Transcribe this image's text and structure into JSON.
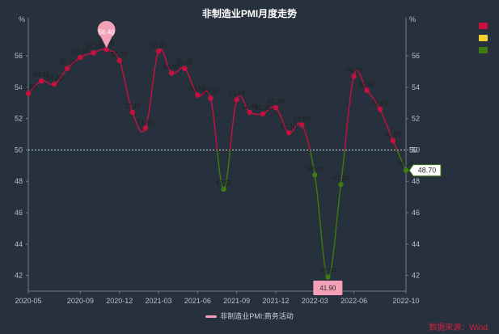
{
  "colors": {
    "up": "#c8103e",
    "down": "#3f7a0c",
    "neutral": "#f2d22e",
    "line_legend": "#f4a0b8",
    "mark_label": "#f4a0b8"
  },
  "legend_dots": [
    "#c8103e",
    "#f2d22e",
    "#3f7a0c"
  ],
  "source_text": "数据来源：Wind",
  "chart_data": {
    "type": "line",
    "title": "非制造业PMI月度走势",
    "y_unit_left": "%",
    "y_unit_right": "%",
    "ylim": [
      41,
      57.5
    ],
    "yticks": [
      42,
      44,
      46,
      48,
      50,
      52,
      54,
      56
    ],
    "x_tick_labels": [
      "2020-05",
      "2020-09",
      "2020-12",
      "2021-03",
      "2021-06",
      "2021-09",
      "2021-12",
      "2022-03",
      "2022-06",
      "2022-10"
    ],
    "threshold": 50,
    "threshold_label": "50",
    "series": [
      {
        "name": "非制造业PMI:商务活动",
        "x": [
          "2020-05",
          "2020-06",
          "2020-07",
          "2020-08",
          "2020-09",
          "2020-10",
          "2020-11",
          "2020-12",
          "2021-01",
          "2021-02",
          "2021-03",
          "2021-04",
          "2021-05",
          "2021-06",
          "2021-07",
          "2021-08",
          "2021-09",
          "2021-10",
          "2021-11",
          "2021-12",
          "2022-01",
          "2022-02",
          "2022-03",
          "2022-04",
          "2022-05",
          "2022-06",
          "2022-07",
          "2022-08",
          "2022-09",
          "2022-10"
        ],
        "values": [
          53.6,
          54.4,
          54.2,
          55.2,
          55.9,
          56.2,
          56.4,
          55.7,
          52.4,
          51.4,
          56.3,
          54.9,
          55.2,
          53.5,
          53.3,
          47.5,
          53.2,
          52.4,
          52.3,
          52.7,
          51.1,
          51.6,
          48.4,
          41.9,
          47.8,
          54.7,
          53.8,
          52.6,
          50.6,
          48.7
        ],
        "labels": [
          "53.60",
          "54.40",
          "54.20",
          "55.20",
          "55.90",
          "56.20",
          "56.40",
          "55.70",
          "52.40",
          "51.40",
          "56.30",
          "54.90",
          "55.20",
          "53.50",
          "53.30",
          "47.50",
          "53.20",
          "52.40",
          "52.30",
          "52.70",
          "51.10",
          "51.60",
          "48.40",
          "41.90",
          "47.80",
          "54.70",
          "53.80",
          "52.60",
          "50.60",
          "48.70"
        ]
      }
    ],
    "annotations": {
      "max": "56.40",
      "min": "41.90",
      "last": "48.70"
    }
  }
}
